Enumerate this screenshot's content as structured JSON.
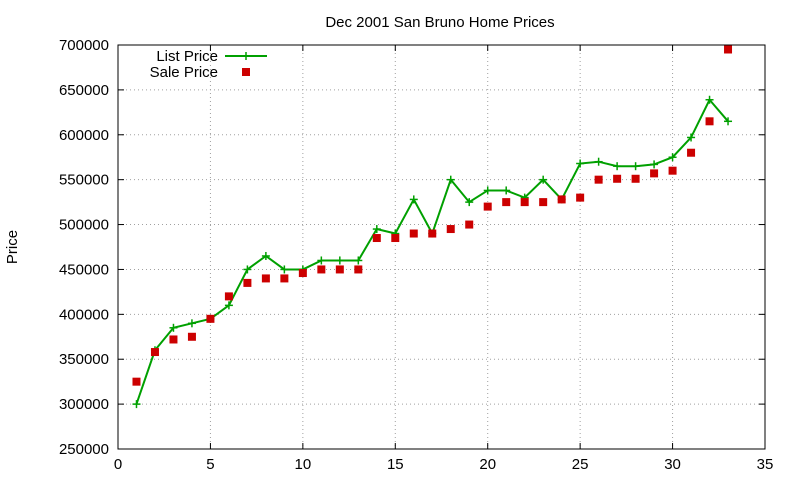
{
  "chart_data": {
    "type": "line",
    "title": "Dec 2001 San Bruno Home Prices",
    "xlabel": "",
    "ylabel": "Price",
    "xlim": [
      0,
      35
    ],
    "ylim": [
      250000,
      700000
    ],
    "x_ticks": [
      0,
      5,
      10,
      15,
      20,
      25,
      30,
      35
    ],
    "y_ticks": [
      250000,
      300000,
      350000,
      400000,
      450000,
      500000,
      550000,
      600000,
      650000,
      700000
    ],
    "grid": true,
    "legend_position": "top-left",
    "series": [
      {
        "name": "List Price",
        "style": "line+plus",
        "color": "#00a000",
        "x": [
          1,
          2,
          3,
          4,
          5,
          6,
          7,
          8,
          9,
          10,
          11,
          12,
          13,
          14,
          15,
          16,
          17,
          18,
          19,
          20,
          21,
          22,
          23,
          24,
          25,
          26,
          27,
          28,
          29,
          30,
          31,
          32,
          33
        ],
        "y": [
          300000,
          360000,
          385000,
          390000,
          395000,
          410000,
          450000,
          465000,
          450000,
          450000,
          460000,
          460000,
          460000,
          495000,
          490000,
          528000,
          490000,
          550000,
          525000,
          538000,
          538000,
          530000,
          550000,
          528000,
          568000,
          570000,
          565000,
          565000,
          567000,
          575000,
          597000,
          639000,
          615000
        ]
      },
      {
        "name": "Sale Price",
        "style": "square",
        "color": "#cc0000",
        "x": [
          1,
          2,
          3,
          4,
          5,
          6,
          7,
          8,
          9,
          10,
          11,
          12,
          13,
          14,
          15,
          16,
          17,
          18,
          19,
          20,
          21,
          22,
          23,
          24,
          25,
          26,
          27,
          28,
          29,
          30,
          31,
          32,
          33
        ],
        "y": [
          325000,
          358000,
          372000,
          375000,
          395000,
          420000,
          435000,
          440000,
          440000,
          446000,
          450000,
          450000,
          450000,
          485000,
          485000,
          490000,
          490000,
          495000,
          500000,
          520000,
          525000,
          525000,
          525000,
          528000,
          530000,
          550000,
          551000,
          551000,
          557000,
          560000,
          580000,
          615000,
          695000
        ]
      }
    ]
  }
}
